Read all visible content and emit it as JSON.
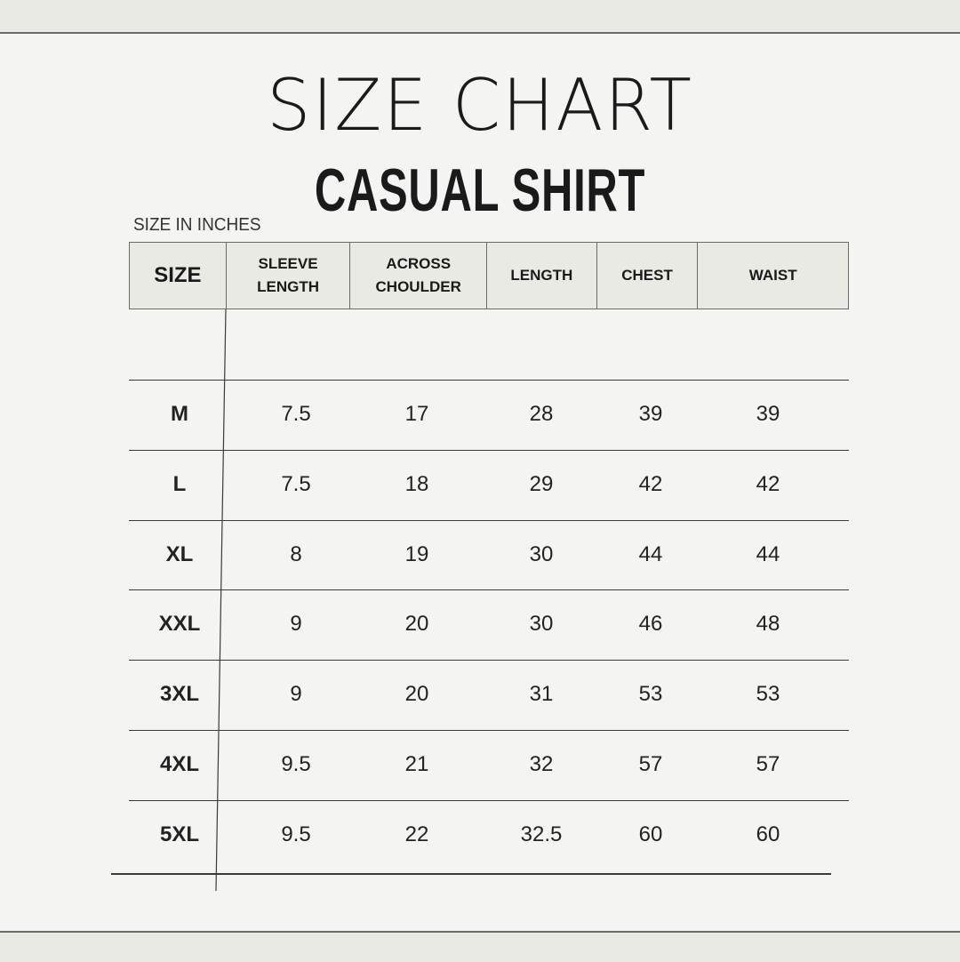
{
  "title": "SIZE CHART",
  "subtitle": "CASUAL SHIRT",
  "unit_label": "SIZE IN INCHES",
  "colors": {
    "background": "#f4f4f2",
    "header_fill": "#e9eae3",
    "text": "#1a1a1a",
    "lines": "#3a3a3a"
  },
  "columns": [
    "SIZE",
    "SLEEVE\nLENGTH",
    "ACROSS\nCHOULDER",
    "LENGTH",
    "CHEST",
    "WAIST"
  ],
  "rows": [
    [
      "M",
      "7.5",
      "17",
      "28",
      "39",
      "39"
    ],
    [
      "L",
      "7.5",
      "18",
      "29",
      "42",
      "42"
    ],
    [
      "XL",
      "8",
      "19",
      "30",
      "44",
      "44"
    ],
    [
      "XXL",
      "9",
      "20",
      "30",
      "46",
      "48"
    ],
    [
      "3XL",
      "9",
      "20",
      "31",
      "53",
      "53"
    ],
    [
      "4XL",
      "9.5",
      "21",
      "32",
      "57",
      "57"
    ],
    [
      "5XL",
      "9.5",
      "22",
      "32.5",
      "60",
      "60"
    ]
  ]
}
